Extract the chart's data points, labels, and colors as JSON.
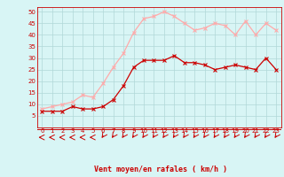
{
  "x": [
    0,
    1,
    2,
    3,
    4,
    5,
    6,
    7,
    8,
    9,
    10,
    11,
    12,
    13,
    14,
    15,
    16,
    17,
    18,
    19,
    20,
    21,
    22,
    23
  ],
  "vent_moyen": [
    7,
    7,
    7,
    9,
    8,
    8,
    9,
    12,
    18,
    26,
    29,
    29,
    29,
    31,
    28,
    28,
    27,
    25,
    26,
    27,
    26,
    25,
    30,
    25
  ],
  "en_rafales": [
    8,
    9,
    10,
    11,
    14,
    13,
    19,
    26,
    32,
    41,
    47,
    48,
    50,
    48,
    45,
    42,
    43,
    45,
    44,
    40,
    46,
    40,
    45,
    42
  ],
  "color_moyen": "#cc0000",
  "color_rafales": "#ffaaaa",
  "bg_color": "#d8f5f5",
  "grid_color": "#b0d8d8",
  "xlabel": "Vent moyen/en rafales ( km/h )",
  "xlabel_color": "#cc0000",
  "ylim": [
    0,
    52
  ],
  "yticks": [
    5,
    10,
    15,
    20,
    25,
    30,
    35,
    40,
    45,
    50
  ],
  "xlim": [
    -0.5,
    23.5
  ],
  "tick_fontsize": 5.0,
  "label_fontsize": 6.0
}
